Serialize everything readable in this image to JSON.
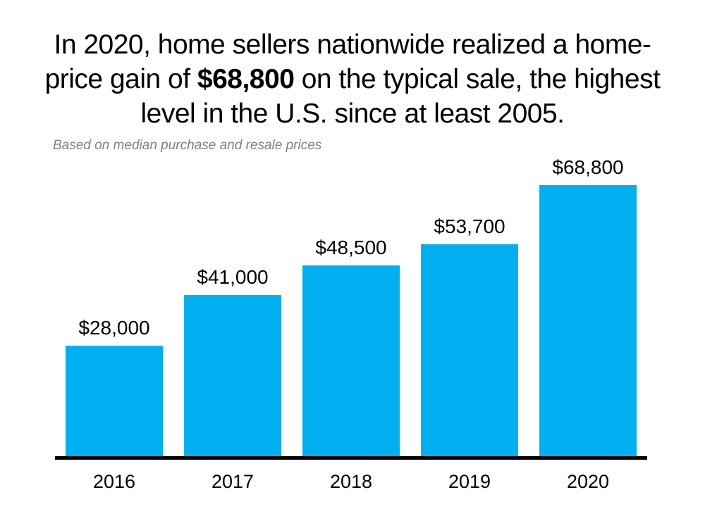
{
  "slide": {
    "title": {
      "part1": "In 2020, home sellers nationwide realized a home-price gain of ",
      "highlight": "$68,800",
      "part2": " on the typical sale, the highest level in the U.S. since at least 2005."
    },
    "subtitle": "Based on median purchase and resale prices"
  },
  "colors": {
    "bar": "#00B0F0",
    "axis": "#000000",
    "title_text": "#000000",
    "subtitle_text": "#7f7f7f",
    "background": "#ffffff"
  },
  "chart_data": {
    "type": "bar",
    "categories": [
      "2016",
      "2017",
      "2018",
      "2019",
      "2020"
    ],
    "values": [
      28000,
      41000,
      48500,
      53700,
      68800
    ],
    "value_labels": [
      "$28,000",
      "$41,000",
      "$48,500",
      "$53,700",
      "$68,800"
    ],
    "title": "In 2020, home sellers nationwide realized a home-price gain of $68,800 on the typical sale, the highest level in the U.S. since at least 2005.",
    "subtitle": "Based on median purchase and resale prices",
    "xlabel": "",
    "ylabel": "",
    "ylim": [
      0,
      68800
    ],
    "grid": false,
    "legend": false,
    "bar_color": "#00B0F0",
    "data_labels_position": "above-bar",
    "baseline_color": "#000000"
  }
}
